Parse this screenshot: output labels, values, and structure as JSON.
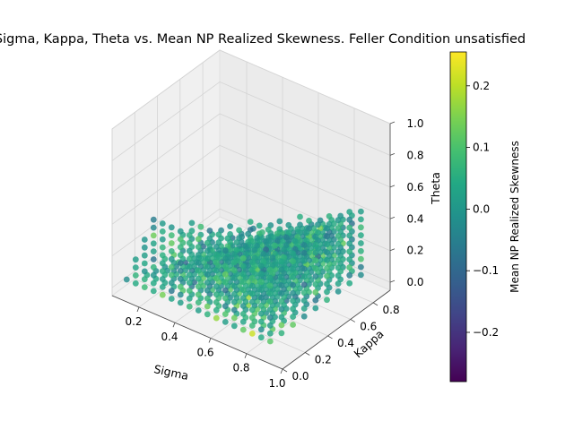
{
  "chart_data": {
    "type": "scatter",
    "projection": "3d",
    "title": "Sigma, Kappa, Theta vs. Mean NP Realized Skewness. Feller Condition unsatisfied",
    "xlabel": "Sigma",
    "ylabel": "Kappa",
    "zlabel": "Theta",
    "xlim": [
      0.05,
      1.0
    ],
    "ylim": [
      0.0,
      0.95
    ],
    "zlim": [
      -0.05,
      1.0
    ],
    "x_ticks": [
      "0.2",
      "0.4",
      "0.6",
      "0.8",
      "1.0"
    ],
    "y_ticks": [
      "0.0",
      "0.2",
      "0.4",
      "0.6",
      "0.8"
    ],
    "z_ticks": [
      "0.0",
      "0.2",
      "0.4",
      "0.6",
      "0.8",
      "1.0"
    ],
    "x_tick_values": [
      0.2,
      0.4,
      0.6,
      0.8,
      1.0
    ],
    "y_tick_values": [
      0.0,
      0.2,
      0.4,
      0.6,
      0.8
    ],
    "z_tick_values": [
      0.0,
      0.2,
      0.4,
      0.6,
      0.8,
      1.0
    ],
    "colormap": "viridis",
    "grid": true,
    "colorbar": {
      "label": "Mean NP Realized Skewness",
      "range": [
        -0.28,
        0.255
      ],
      "ticks": [
        "0.2",
        "0.1",
        "0.0",
        "−0.1",
        "−0.2"
      ],
      "tick_values": [
        0.2,
        0.1,
        0.0,
        -0.1,
        -0.2
      ]
    },
    "grid_spec": {
      "sigma_values": [
        0.1,
        0.15,
        0.2,
        0.25,
        0.3,
        0.35,
        0.4,
        0.45,
        0.5,
        0.55,
        0.6,
        0.65,
        0.7,
        0.75,
        0.8,
        0.85,
        0.9
      ],
      "kappa_values": [
        0.05,
        0.15,
        0.25,
        0.35,
        0.45,
        0.55,
        0.65,
        0.75,
        0.85
      ],
      "theta_values": [
        0.05,
        0.1,
        0.15,
        0.2,
        0.25,
        0.3,
        0.35,
        0.4,
        0.45,
        0.5
      ],
      "feller_condition": "unsatisfied (2*kappa*theta < sigma^2)",
      "skewness_mean": 0.02,
      "skewness_spread": 0.06
    }
  }
}
